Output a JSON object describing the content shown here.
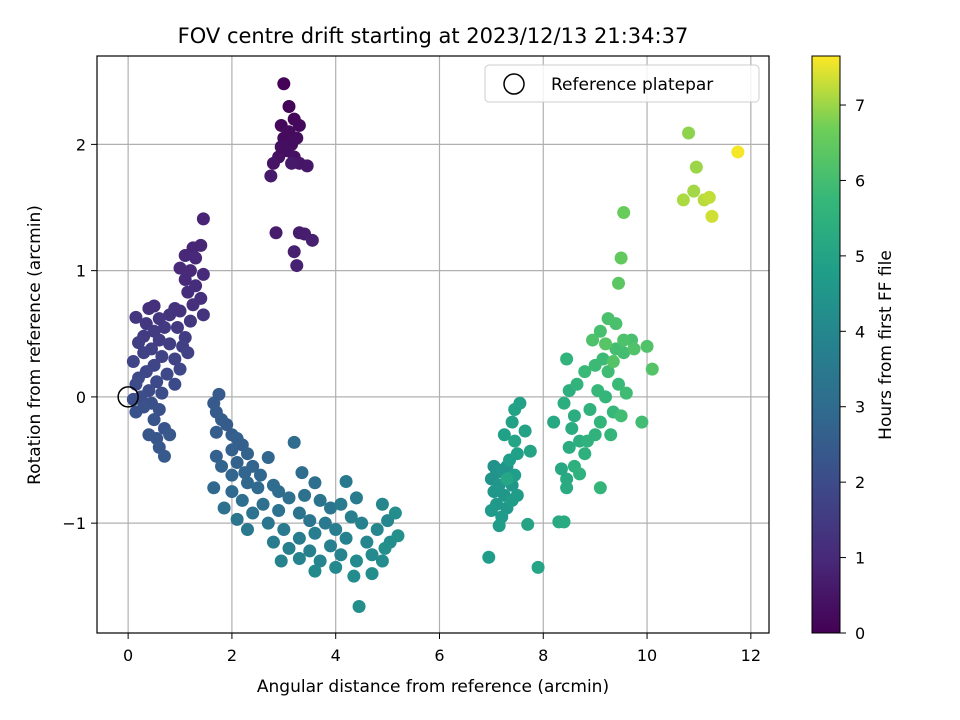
{
  "chart_data": {
    "type": "scatter",
    "title": "FOV centre drift starting at 2023/12/13 21:34:37",
    "xlabel": "Angular distance from reference (arcmin)",
    "ylabel": "Rotation from reference (arcmin)",
    "xlim": [
      -0.6,
      12.35
    ],
    "ylim": [
      -1.87,
      2.7
    ],
    "xticks": [
      0,
      2,
      4,
      6,
      8,
      10,
      12
    ],
    "xtick_labels": [
      "0",
      "2",
      "4",
      "6",
      "8",
      "10",
      "12"
    ],
    "yticks": [
      -1,
      0,
      1,
      2
    ],
    "ytick_labels": [
      "−1",
      "0",
      "1",
      "2"
    ],
    "grid": true,
    "legend": {
      "position": "top-right",
      "entries": [
        "Reference platepar"
      ]
    },
    "reference_point": [
      0,
      0
    ],
    "colorbar": {
      "label": "Hours from first FF file",
      "range": [
        0,
        7.65
      ],
      "ticks": [
        0,
        1,
        2,
        3,
        4,
        5,
        6,
        7
      ],
      "tick_labels": [
        "0",
        "1",
        "2",
        "3",
        "4",
        "5",
        "6",
        "7"
      ],
      "colormap": "viridis"
    },
    "points": [
      [
        3.0,
        2.48,
        0.05
      ],
      [
        3.1,
        2.3,
        0.1
      ],
      [
        3.2,
        2.2,
        0.15
      ],
      [
        3.3,
        2.15,
        0.2
      ],
      [
        2.95,
        2.15,
        0.2
      ],
      [
        3.0,
        2.05,
        0.25
      ],
      [
        3.15,
        2.0,
        0.3
      ],
      [
        3.25,
        2.05,
        0.3
      ],
      [
        3.05,
        1.95,
        0.35
      ],
      [
        3.2,
        1.9,
        0.4
      ],
      [
        2.9,
        1.9,
        0.4
      ],
      [
        2.8,
        1.85,
        0.45
      ],
      [
        3.3,
        1.85,
        0.5
      ],
      [
        3.45,
        1.83,
        0.55
      ],
      [
        2.75,
        1.75,
        0.6
      ],
      [
        3.15,
        1.85,
        0.6
      ],
      [
        2.95,
        1.98,
        0.35
      ],
      [
        3.1,
        2.1,
        0.25
      ],
      [
        2.85,
        1.3,
        0.65
      ],
      [
        3.3,
        1.3,
        0.65
      ],
      [
        3.4,
        1.29,
        0.7
      ],
      [
        3.55,
        1.24,
        0.75
      ],
      [
        3.2,
        1.15,
        0.75
      ],
      [
        3.25,
        1.04,
        0.8
      ],
      [
        1.45,
        1.41,
        0.85
      ],
      [
        1.4,
        1.2,
        0.9
      ],
      [
        1.25,
        1.18,
        0.9
      ],
      [
        1.1,
        1.12,
        0.95
      ],
      [
        1.3,
        1.1,
        0.95
      ],
      [
        1.0,
        1.02,
        1.0
      ],
      [
        1.2,
        1.0,
        1.0
      ],
      [
        1.45,
        0.97,
        1.05
      ],
      [
        1.1,
        0.93,
        1.05
      ],
      [
        1.3,
        0.88,
        1.1
      ],
      [
        1.15,
        0.83,
        1.1
      ],
      [
        1.4,
        0.78,
        1.15
      ],
      [
        1.25,
        0.73,
        1.15
      ],
      [
        0.5,
        0.72,
        1.2
      ],
      [
        0.4,
        0.7,
        1.2
      ],
      [
        0.9,
        0.7,
        1.25
      ],
      [
        1.0,
        0.68,
        1.25
      ],
      [
        1.45,
        0.65,
        1.3
      ],
      [
        0.8,
        0.65,
        1.3
      ],
      [
        0.15,
        0.63,
        1.35
      ],
      [
        0.6,
        0.62,
        1.35
      ],
      [
        1.2,
        0.6,
        1.4
      ],
      [
        0.35,
        0.58,
        1.4
      ],
      [
        0.7,
        0.55,
        1.45
      ],
      [
        0.95,
        0.55,
        1.45
      ],
      [
        0.5,
        0.52,
        1.5
      ],
      [
        0.3,
        0.48,
        1.5
      ],
      [
        1.1,
        0.47,
        1.55
      ],
      [
        0.6,
        0.45,
        1.55
      ],
      [
        0.2,
        0.43,
        1.6
      ],
      [
        0.8,
        0.42,
        1.6
      ],
      [
        1.05,
        0.4,
        1.65
      ],
      [
        0.45,
        0.38,
        1.65
      ],
      [
        0.3,
        0.35,
        1.7
      ],
      [
        1.15,
        0.35,
        1.7
      ],
      [
        0.65,
        0.32,
        1.75
      ],
      [
        0.9,
        0.3,
        1.75
      ],
      [
        0.1,
        0.28,
        1.8
      ],
      [
        0.5,
        0.25,
        1.8
      ],
      [
        1.0,
        0.22,
        1.85
      ],
      [
        0.35,
        0.2,
        1.85
      ],
      [
        0.75,
        0.18,
        1.9
      ],
      [
        0.2,
        0.15,
        1.9
      ],
      [
        0.55,
        0.12,
        1.95
      ],
      [
        0.9,
        0.1,
        1.95
      ],
      [
        0.15,
        0.1,
        2.0
      ],
      [
        0.4,
        0.05,
        2.0
      ],
      [
        0.65,
        0.03,
        2.05
      ],
      [
        0.25,
        0.0,
        2.05
      ],
      [
        0.1,
        -0.02,
        2.1
      ],
      [
        0.45,
        -0.05,
        2.1
      ],
      [
        0.3,
        -0.08,
        2.15
      ],
      [
        0.6,
        -0.1,
        2.15
      ],
      [
        0.15,
        -0.12,
        2.2
      ],
      [
        0.5,
        -0.18,
        2.25
      ],
      [
        0.7,
        -0.25,
        2.25
      ],
      [
        0.4,
        -0.3,
        2.3
      ],
      [
        0.55,
        -0.33,
        2.3
      ],
      [
        0.8,
        -0.3,
        2.35
      ],
      [
        0.6,
        -0.4,
        2.35
      ],
      [
        0.7,
        -0.47,
        2.4
      ],
      [
        1.75,
        0.02,
        2.4
      ],
      [
        1.65,
        -0.05,
        2.45
      ],
      [
        1.7,
        -0.12,
        2.45
      ],
      [
        1.8,
        -0.18,
        2.5
      ],
      [
        1.9,
        -0.22,
        2.5
      ],
      [
        1.7,
        -0.28,
        2.55
      ],
      [
        2.0,
        -0.3,
        2.55
      ],
      [
        2.1,
        -0.33,
        2.6
      ],
      [
        2.2,
        -0.38,
        2.6
      ],
      [
        2.0,
        -0.42,
        2.65
      ],
      [
        1.7,
        -0.47,
        2.65
      ],
      [
        2.3,
        -0.45,
        2.7
      ],
      [
        2.1,
        -0.52,
        2.7
      ],
      [
        1.8,
        -0.55,
        2.75
      ],
      [
        2.4,
        -0.55,
        2.75
      ],
      [
        2.25,
        -0.6,
        2.8
      ],
      [
        2.0,
        -0.62,
        2.8
      ],
      [
        2.7,
        -0.48,
        2.85
      ],
      [
        2.55,
        -0.62,
        2.85
      ],
      [
        1.65,
        -0.72,
        2.9
      ],
      [
        2.3,
        -0.68,
        2.9
      ],
      [
        2.0,
        -0.75,
        2.95
      ],
      [
        2.5,
        -0.72,
        2.95
      ],
      [
        2.8,
        -0.7,
        3.0
      ],
      [
        3.2,
        -0.36,
        3.0
      ],
      [
        3.35,
        -0.6,
        3.05
      ],
      [
        2.9,
        -0.75,
        3.05
      ],
      [
        3.6,
        -0.68,
        3.1
      ],
      [
        2.2,
        -0.82,
        3.1
      ],
      [
        2.6,
        -0.85,
        3.15
      ],
      [
        3.1,
        -0.8,
        3.15
      ],
      [
        3.4,
        -0.78,
        3.2
      ],
      [
        1.85,
        -0.88,
        3.2
      ],
      [
        2.4,
        -0.92,
        3.25
      ],
      [
        2.9,
        -0.9,
        3.25
      ],
      [
        3.7,
        -0.82,
        3.3
      ],
      [
        3.3,
        -0.92,
        3.3
      ],
      [
        2.1,
        -0.97,
        3.35
      ],
      [
        2.7,
        -1.0,
        3.35
      ],
      [
        3.5,
        -0.98,
        3.4
      ],
      [
        3.9,
        -0.88,
        3.4
      ],
      [
        4.2,
        -0.67,
        3.45
      ],
      [
        2.3,
        -1.05,
        3.45
      ],
      [
        3.0,
        -1.05,
        3.5
      ],
      [
        3.8,
        -1.0,
        3.5
      ],
      [
        4.1,
        -0.85,
        3.55
      ],
      [
        4.4,
        -0.8,
        3.55
      ],
      [
        2.8,
        -1.15,
        3.6
      ],
      [
        3.3,
        -1.12,
        3.6
      ],
      [
        3.6,
        -1.08,
        3.65
      ],
      [
        4.0,
        -1.05,
        3.65
      ],
      [
        4.3,
        -0.95,
        3.7
      ],
      [
        3.1,
        -1.2,
        3.7
      ],
      [
        3.5,
        -1.22,
        3.75
      ],
      [
        3.9,
        -1.18,
        3.75
      ],
      [
        4.2,
        -1.12,
        3.8
      ],
      [
        4.5,
        -1.0,
        3.8
      ],
      [
        2.95,
        -1.3,
        3.85
      ],
      [
        3.3,
        -1.28,
        3.85
      ],
      [
        3.7,
        -1.3,
        3.9
      ],
      [
        4.1,
        -1.25,
        3.9
      ],
      [
        4.6,
        -1.15,
        3.95
      ],
      [
        4.8,
        -1.05,
        3.95
      ],
      [
        5.0,
        -0.98,
        4.0
      ],
      [
        4.9,
        -0.85,
        4.0
      ],
      [
        3.6,
        -1.38,
        4.05
      ],
      [
        4.0,
        -1.35,
        4.05
      ],
      [
        4.4,
        -1.3,
        4.1
      ],
      [
        4.7,
        -1.25,
        4.1
      ],
      [
        4.35,
        -1.42,
        4.15
      ],
      [
        4.9,
        -1.3,
        4.15
      ],
      [
        5.05,
        -1.15,
        4.2
      ],
      [
        4.7,
        -1.4,
        4.2
      ],
      [
        5.15,
        -0.92,
        4.25
      ],
      [
        4.45,
        -1.66,
        4.25
      ],
      [
        5.2,
        -1.1,
        4.3
      ],
      [
        4.95,
        -1.2,
        4.3
      ],
      [
        7.05,
        -0.55,
        4.35
      ],
      [
        7.1,
        -0.6,
        4.4
      ],
      [
        7.0,
        -0.65,
        4.4
      ],
      [
        7.2,
        -0.58,
        4.45
      ],
      [
        7.3,
        -0.55,
        4.45
      ],
      [
        7.15,
        -0.7,
        4.5
      ],
      [
        7.05,
        -0.75,
        4.5
      ],
      [
        7.25,
        -0.78,
        4.55
      ],
      [
        7.4,
        -0.7,
        4.55
      ],
      [
        7.1,
        -0.85,
        4.6
      ],
      [
        7.3,
        -0.88,
        4.6
      ],
      [
        7.2,
        -0.95,
        4.65
      ],
      [
        7.0,
        -0.9,
        4.65
      ],
      [
        7.4,
        -0.82,
        4.7
      ],
      [
        7.5,
        -0.78,
        4.7
      ],
      [
        7.15,
        -1.02,
        4.75
      ],
      [
        6.95,
        -1.27,
        4.75
      ],
      [
        7.45,
        -0.62,
        4.8
      ],
      [
        7.35,
        -0.5,
        4.8
      ],
      [
        7.5,
        -0.45,
        4.85
      ],
      [
        7.25,
        -0.3,
        4.85
      ],
      [
        7.4,
        -0.2,
        4.9
      ],
      [
        7.55,
        -0.05,
        4.9
      ],
      [
        7.45,
        -0.1,
        4.95
      ],
      [
        7.65,
        -0.27,
        4.95
      ],
      [
        7.75,
        -0.43,
        5.0
      ],
      [
        7.7,
        -1.01,
        5.0
      ],
      [
        7.9,
        -1.35,
        5.05
      ],
      [
        7.45,
        -0.35,
        5.05
      ],
      [
        7.3,
        -0.65,
        5.1
      ],
      [
        8.2,
        -0.2,
        5.15
      ],
      [
        8.35,
        -0.57,
        5.15
      ],
      [
        8.45,
        -0.65,
        5.2
      ],
      [
        8.3,
        -0.99,
        5.2
      ],
      [
        8.45,
        -0.72,
        5.25
      ],
      [
        8.4,
        -0.99,
        5.25
      ],
      [
        8.5,
        -0.4,
        5.3
      ],
      [
        8.55,
        -0.25,
        5.3
      ],
      [
        8.6,
        -0.15,
        5.35
      ],
      [
        8.4,
        -0.05,
        5.35
      ],
      [
        8.5,
        0.05,
        5.4
      ],
      [
        8.7,
        -0.35,
        5.4
      ],
      [
        8.8,
        -0.45,
        5.45
      ],
      [
        8.6,
        -0.55,
        5.45
      ],
      [
        8.7,
        -0.61,
        5.5
      ],
      [
        8.85,
        -0.35,
        5.5
      ],
      [
        9.0,
        -0.3,
        5.55
      ],
      [
        8.9,
        -0.1,
        5.55
      ],
      [
        8.65,
        0.1,
        5.6
      ],
      [
        8.45,
        0.3,
        5.6
      ],
      [
        9.1,
        -0.72,
        5.65
      ],
      [
        9.1,
        -0.2,
        5.65
      ],
      [
        9.3,
        -0.3,
        5.7
      ],
      [
        9.2,
        0.0,
        5.7
      ],
      [
        9.05,
        0.05,
        5.75
      ],
      [
        9.35,
        -0.12,
        5.75
      ],
      [
        9.45,
        0.1,
        5.8
      ],
      [
        8.8,
        0.2,
        5.8
      ],
      [
        9.0,
        0.25,
        5.85
      ],
      [
        9.15,
        0.3,
        5.85
      ],
      [
        9.25,
        0.2,
        5.9
      ],
      [
        9.6,
        0.03,
        5.9
      ],
      [
        9.5,
        -0.15,
        5.95
      ],
      [
        9.9,
        -0.2,
        5.95
      ],
      [
        9.4,
        0.38,
        6.0
      ],
      [
        9.55,
        0.35,
        6.0
      ],
      [
        9.7,
        0.45,
        6.05
      ],
      [
        9.1,
        0.52,
        6.05
      ],
      [
        9.25,
        0.62,
        6.1
      ],
      [
        9.4,
        0.58,
        6.1
      ],
      [
        8.95,
        0.45,
        6.15
      ],
      [
        9.55,
        0.45,
        6.15
      ],
      [
        9.75,
        0.38,
        6.2
      ],
      [
        10.0,
        0.4,
        6.2
      ],
      [
        10.1,
        0.22,
        6.25
      ],
      [
        9.35,
        0.28,
        6.25
      ],
      [
        9.2,
        0.42,
        6.3
      ],
      [
        9.45,
        0.9,
        6.4
      ],
      [
        9.5,
        1.1,
        6.5
      ],
      [
        9.55,
        1.46,
        6.6
      ],
      [
        10.8,
        2.09,
        6.9
      ],
      [
        10.95,
        1.82,
        7.0
      ],
      [
        10.9,
        1.63,
        7.05
      ],
      [
        10.7,
        1.56,
        7.1
      ],
      [
        11.1,
        1.56,
        7.2
      ],
      [
        11.2,
        1.58,
        7.25
      ],
      [
        11.25,
        1.43,
        7.35
      ],
      [
        11.75,
        1.94,
        7.6
      ]
    ]
  }
}
